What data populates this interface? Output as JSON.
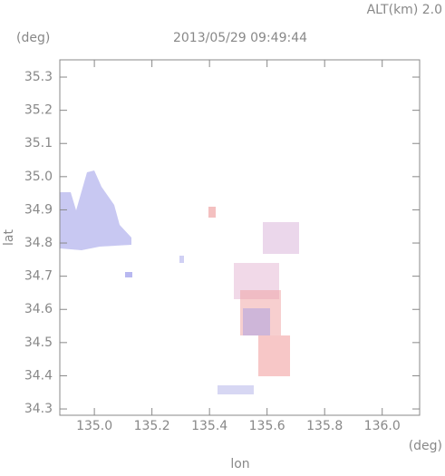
{
  "chart_data": {
    "type": "map",
    "title": "2013/05/29 09:49:44",
    "annotation": "ALT(km) 2.0",
    "xlabel": "lon",
    "ylabel": "lat",
    "xunit": "(deg)",
    "yunit": "(deg)",
    "xlim": [
      134.88,
      136.13
    ],
    "ylim": [
      34.281,
      35.352
    ],
    "xticks": [
      {
        "value": 135,
        "label": "135.0"
      },
      135.2,
      135.4,
      135.6,
      135.8,
      {
        "value": 136,
        "label": "136.0"
      }
    ],
    "yticks": [
      34.3,
      34.4,
      34.5,
      34.6,
      34.7,
      34.8,
      34.9,
      {
        "value": 35,
        "label": "35.0"
      },
      35.1,
      35.2,
      35.3
    ]
  }
}
